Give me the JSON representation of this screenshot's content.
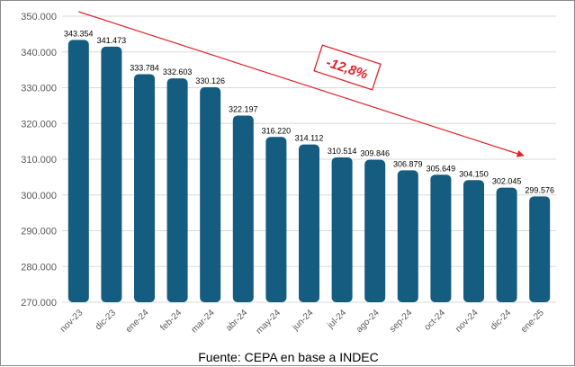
{
  "chart_data": {
    "type": "bar",
    "categories": [
      "nov-23",
      "dic-23",
      "ene-24",
      "feb-24",
      "mar-24",
      "abr-24",
      "may-24",
      "jun-24",
      "jul-24",
      "ago-24",
      "sep-24",
      "oct-24",
      "nov-24",
      "dic-24",
      "ene-25"
    ],
    "values": [
      343354,
      341473,
      333784,
      332603,
      330126,
      322197,
      316220,
      314112,
      310514,
      309846,
      306879,
      305649,
      304150,
      302045,
      299576
    ],
    "value_labels": [
      "343.354",
      "341.473",
      "333.784",
      "332.603",
      "330.126",
      "322.197",
      "316.220",
      "314.112",
      "310.514",
      "309.846",
      "306.879",
      "305.649",
      "304.150",
      "302.045",
      "299.576"
    ],
    "y_ticks": [
      270000,
      280000,
      290000,
      300000,
      310000,
      320000,
      330000,
      340000,
      350000
    ],
    "y_tick_labels": [
      "270.000",
      "280.000",
      "290.000",
      "300.000",
      "310.000",
      "320.000",
      "330.000",
      "340.000",
      "350.000"
    ],
    "ylim": [
      270000,
      350000
    ],
    "grid": true,
    "title": "",
    "xlabel": "",
    "ylabel": "",
    "annotation": {
      "text": "-12,8%",
      "arrow_from": "nov-23",
      "arrow_to": "ene-25"
    },
    "colors": {
      "bar": "#145c80",
      "annotation": "#e0232b",
      "grid": "#d9d9d9"
    }
  },
  "source": "Fuente: CEPA en base a INDEC"
}
